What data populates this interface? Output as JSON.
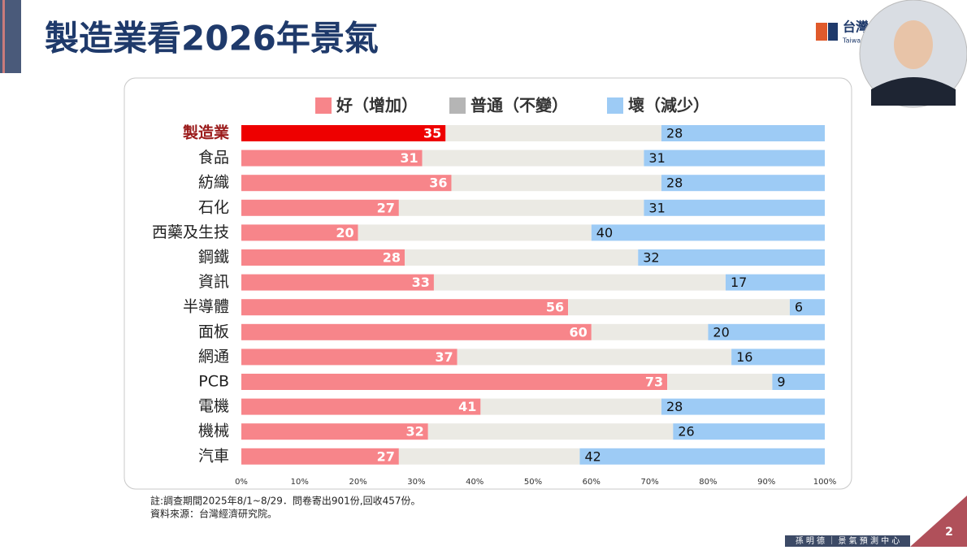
{
  "slide": {
    "title": "製造業看2026年景氣",
    "notes": [
      "註:調查期間2025年8/1~8/29．問卷寄出901份,回收457份。",
      "資料來源：台灣經濟研究院。"
    ],
    "logo": "台灣",
    "logo_sub": "Taiwan",
    "footer": "孫 明 德 ｜ 景 氣 預 測 中 心",
    "page_number": "2"
  },
  "chart_data": {
    "type": "stacked-bar-horizontal",
    "categories": [
      "製造業",
      "食品",
      "紡織",
      "石化",
      "西藥及生技",
      "鋼鐵",
      "資訊",
      "半導體",
      "面板",
      "網通",
      "PCB",
      "電機",
      "機械",
      "汽車"
    ],
    "series": [
      {
        "name": "好（增加）",
        "color": "#f7858a",
        "values": [
          35,
          31,
          36,
          27,
          20,
          28,
          33,
          56,
          60,
          37,
          73,
          41,
          32,
          27
        ]
      },
      {
        "name": "普通（不變）",
        "color": "#ebeae4",
        "values": [
          37,
          38,
          36,
          42,
          40,
          40,
          50,
          38,
          20,
          47,
          18,
          31,
          42,
          31
        ]
      },
      {
        "name": "壞（減少）",
        "color": "#9dcbf5",
        "values": [
          28,
          31,
          28,
          31,
          40,
          32,
          17,
          6,
          20,
          16,
          9,
          28,
          26,
          42
        ]
      }
    ],
    "legend_colors": [
      "#f7858a",
      "#b5b5b5",
      "#9dcbf5"
    ],
    "highlight_index": 0,
    "highlight_color": "#ee0000",
    "highlight_label_color": "#9b1b1b",
    "xlim": [
      0,
      100
    ],
    "xticks": [
      {
        "value": 0,
        "label": "0%"
      },
      {
        "value": 10,
        "label": "10%"
      },
      {
        "value": 20,
        "label": "20%"
      },
      {
        "value": 30,
        "label": "30%"
      },
      {
        "value": 40,
        "label": "40%"
      },
      {
        "value": 50,
        "label": "50%"
      },
      {
        "value": 60,
        "label": "60%"
      },
      {
        "value": 70,
        "label": "70%"
      },
      {
        "value": 80,
        "label": "80%"
      },
      {
        "value": 90,
        "label": "90%"
      },
      {
        "value": 100,
        "label": "100%"
      }
    ]
  }
}
